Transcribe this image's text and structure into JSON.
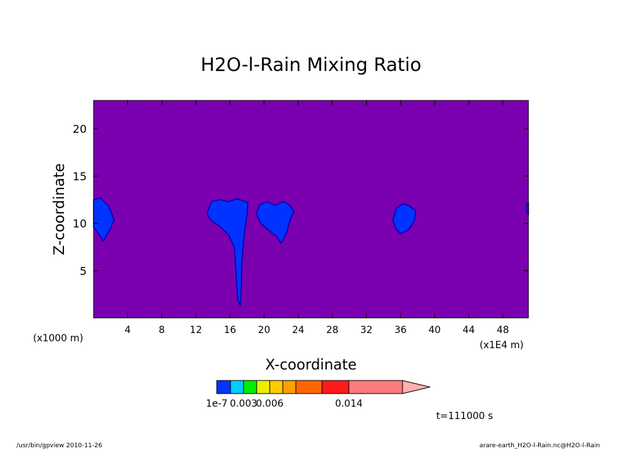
{
  "chart_data": {
    "type": "heatmap",
    "title": "H2O-l-Rain Mixing Ratio",
    "xlabel": "X-coordinate",
    "ylabel": "Z-coordinate",
    "x_unit_left": "(x1000 m)",
    "x_unit_right": "(x1E4 m)",
    "xlim": [
      0,
      51
    ],
    "ylim": [
      0,
      23
    ],
    "xticks": [
      4,
      8,
      12,
      16,
      20,
      24,
      28,
      32,
      36,
      40,
      44,
      48
    ],
    "yticks": [
      5,
      10,
      15,
      20
    ],
    "background_color": "#7a00b0",
    "contour_fill_color": "#0033ff",
    "contour_line_color": "#0000aa",
    "regions": [
      {
        "name": "left-edge",
        "points": [
          [
            0,
            12.5
          ],
          [
            0.8,
            12.7
          ],
          [
            1.8,
            11.8
          ],
          [
            2.4,
            10.4
          ],
          [
            1.9,
            9.3
          ],
          [
            1.1,
            8.1
          ],
          [
            0.5,
            9.0
          ],
          [
            0,
            9.6
          ]
        ]
      },
      {
        "name": "main-cell",
        "points": [
          [
            13.3,
            11.0
          ],
          [
            13.8,
            12.3
          ],
          [
            14.9,
            12.5
          ],
          [
            15.8,
            12.3
          ],
          [
            16.9,
            12.6
          ],
          [
            18.1,
            12.2
          ],
          [
            18.0,
            11.0
          ],
          [
            17.7,
            9.0
          ],
          [
            17.4,
            6.0
          ],
          [
            17.3,
            3.0
          ],
          [
            17.2,
            1.3
          ],
          [
            16.9,
            1.9
          ],
          [
            16.7,
            5.0
          ],
          [
            16.5,
            7.5
          ],
          [
            15.8,
            8.8
          ],
          [
            14.8,
            9.7
          ],
          [
            13.8,
            10.3
          ]
        ]
      },
      {
        "name": "cell-22",
        "points": [
          [
            19.1,
            11.0
          ],
          [
            19.5,
            12.0
          ],
          [
            20.4,
            12.3
          ],
          [
            21.3,
            11.9
          ],
          [
            22.2,
            12.3
          ],
          [
            22.9,
            12.0
          ],
          [
            23.5,
            11.3
          ],
          [
            23.0,
            10.2
          ],
          [
            22.6,
            8.9
          ],
          [
            22.0,
            7.9
          ],
          [
            21.5,
            8.6
          ],
          [
            20.5,
            9.3
          ],
          [
            19.6,
            10.0
          ]
        ]
      },
      {
        "name": "cell-37",
        "points": [
          [
            35.1,
            10.4
          ],
          [
            35.5,
            11.6
          ],
          [
            36.3,
            12.1
          ],
          [
            37.1,
            11.8
          ],
          [
            37.8,
            11.3
          ],
          [
            37.6,
            10.2
          ],
          [
            36.9,
            9.3
          ],
          [
            36.0,
            8.9
          ],
          [
            35.4,
            9.5
          ]
        ]
      },
      {
        "name": "right-edge-sliver",
        "points": [
          [
            50.8,
            12.0
          ],
          [
            51,
            12.2
          ],
          [
            51,
            10.9
          ],
          [
            50.8,
            11.2
          ]
        ]
      }
    ],
    "colorbar": {
      "colors": [
        "#0033ff",
        "#00ccff",
        "#00ee00",
        "#eeee00",
        "#ffcc00",
        "#ffa000",
        "#ff6600",
        "#ff1a1a",
        "#ff7a7a",
        "#ffb0b0"
      ],
      "labels": [
        "1e-7",
        "0.003",
        "0.006",
        "0.014"
      ],
      "label_positions": [
        0,
        2,
        4,
        8
      ]
    },
    "time_label": "t=111000 s"
  },
  "footer": {
    "left": "/usr/bin/gpview   2010-11-26",
    "right": "arare-earth_H2O-l-Rain.nc@H2O-l-Rain"
  }
}
